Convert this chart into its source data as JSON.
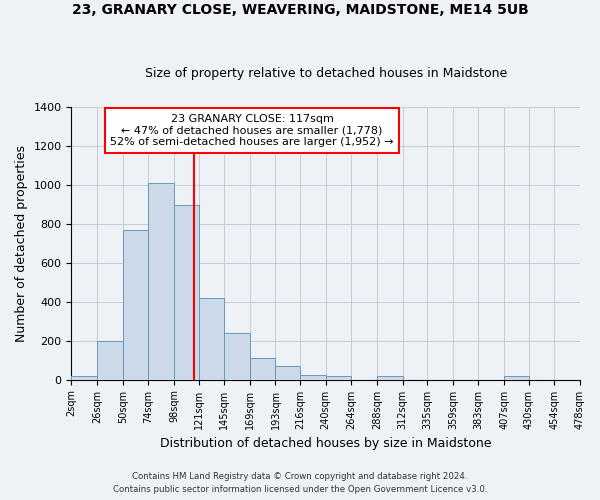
{
  "title": "23, GRANARY CLOSE, WEAVERING, MAIDSTONE, ME14 5UB",
  "subtitle": "Size of property relative to detached houses in Maidstone",
  "xlabel": "Distribution of detached houses by size in Maidstone",
  "ylabel": "Number of detached properties",
  "bin_labels": [
    "2sqm",
    "26sqm",
    "50sqm",
    "74sqm",
    "98sqm",
    "121sqm",
    "145sqm",
    "169sqm",
    "193sqm",
    "216sqm",
    "240sqm",
    "264sqm",
    "288sqm",
    "312sqm",
    "335sqm",
    "359sqm",
    "383sqm",
    "407sqm",
    "430sqm",
    "454sqm",
    "478sqm"
  ],
  "bin_edges": [
    2,
    26,
    50,
    74,
    98,
    121,
    145,
    169,
    193,
    216,
    240,
    264,
    288,
    312,
    335,
    359,
    383,
    407,
    430,
    454,
    478
  ],
  "bar_heights": [
    20,
    200,
    770,
    1010,
    895,
    420,
    240,
    110,
    70,
    25,
    20,
    0,
    20,
    0,
    0,
    0,
    0,
    20,
    0,
    0
  ],
  "bar_color": "#ccd9e8",
  "bar_edge_color": "#6699bb",
  "vline_x": 117,
  "vline_color": "red",
  "annotation_title": "23 GRANARY CLOSE: 117sqm",
  "annotation_line1": "← 47% of detached houses are smaller (1,778)",
  "annotation_line2": "52% of semi-detached houses are larger (1,952) →",
  "annotation_box_color": "white",
  "annotation_box_edge_color": "red",
  "ylim": [
    0,
    1400
  ],
  "yticks": [
    0,
    200,
    400,
    600,
    800,
    1000,
    1200,
    1400
  ],
  "footer1": "Contains HM Land Registry data © Crown copyright and database right 2024.",
  "footer2": "Contains public sector information licensed under the Open Government Licence v3.0.",
  "bg_color": "#eef2f7",
  "plot_bg_color": "#eef2f7",
  "grid_color": "#bbbbcc"
}
